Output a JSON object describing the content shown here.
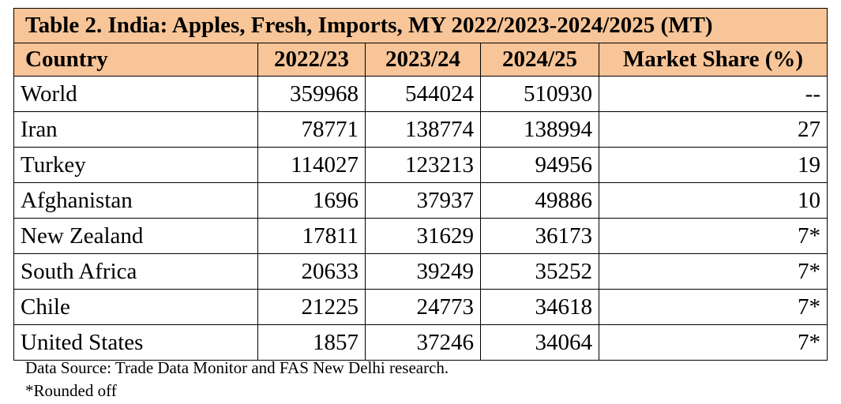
{
  "table": {
    "title": "Table 2. India: Apples, Fresh, Imports, MY 2022/2023-2024/2025 (MT)",
    "headers": {
      "country": "Country",
      "y1": "2022/23",
      "y2": "2023/24",
      "y3": "2024/25",
      "share": "Market Share (%)"
    },
    "rows": [
      {
        "country": "World",
        "y1": "359968",
        "y2": "544024",
        "y3": "510930",
        "share": "--"
      },
      {
        "country": "Iran",
        "y1": "78771",
        "y2": "138774",
        "y3": "138994",
        "share": "27"
      },
      {
        "country": "Turkey",
        "y1": "114027",
        "y2": "123213",
        "y3": "94956",
        "share": "19"
      },
      {
        "country": "Afghanistan",
        "y1": "1696",
        "y2": "37937",
        "y3": "49886",
        "share": "10"
      },
      {
        "country": "New Zealand",
        "y1": "17811",
        "y2": "31629",
        "y3": "36173",
        "share": "7*"
      },
      {
        "country": "South Africa",
        "y1": "20633",
        "y2": "39249",
        "y3": "35252",
        "share": "7*"
      },
      {
        "country": "Chile",
        "y1": "21225",
        "y2": "24773",
        "y3": "34618",
        "share": "7*"
      },
      {
        "country": "United States",
        "y1": "1857",
        "y2": "37246",
        "y3": "34064",
        "share": "7*"
      }
    ]
  },
  "notes": {
    "source": "Data Source: Trade Data Monitor and FAS New Delhi research.",
    "footnote": "*Rounded off"
  },
  "colors": {
    "header_background": "#F7C598",
    "border": "#000000"
  }
}
